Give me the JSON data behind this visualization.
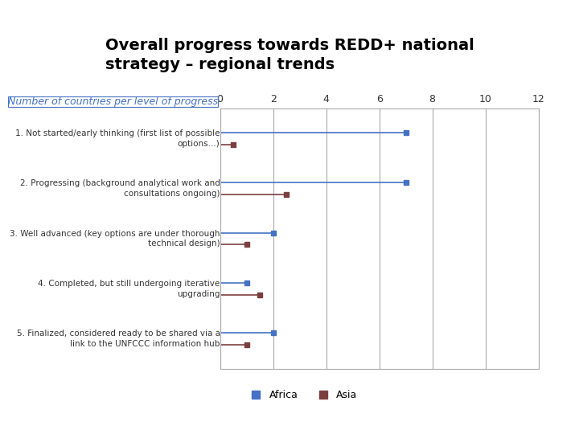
{
  "title": "Overall progress towards REDD+ national\nstrategy – regional trends",
  "subtitle": "Number of countries per level of progress",
  "categories": [
    "5. Finalized, considered ready to be shared via a\nlink to the UNFCCC information hub",
    "4. Completed, but still undergoing iterative\nupgrading",
    "3. Well advanced (key options are under thorough\ntechnical design)",
    "2. Progressing (background analytical work and\nconsultations ongoing)",
    "1. Not started/early thinking (first list of possible\noptions...)"
  ],
  "africa_values": [
    2,
    1,
    2,
    7,
    7
  ],
  "asia_values": [
    1,
    1.5,
    1,
    2.5,
    0.5
  ],
  "africa_color": "#4472C4",
  "asia_color": "#7B3F3F",
  "xlim": [
    0,
    12
  ],
  "xticks": [
    0,
    2,
    4,
    6,
    8,
    10,
    12
  ],
  "background_color": "#FFFFFF",
  "header_color": "#CC0000",
  "subtitle_color": "#4472C4",
  "title_color": "#000000",
  "grid_color": "#AAAAAA"
}
